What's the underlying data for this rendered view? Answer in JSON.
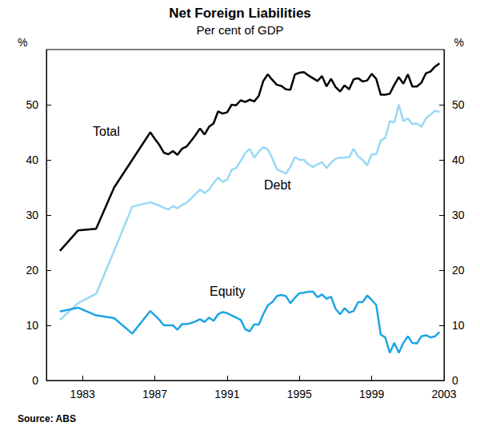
{
  "chart_data": {
    "type": "line",
    "title": "Net Foreign Liabilities",
    "subtitle": "Per cent of GDP",
    "ylabel": "%",
    "source": "Source: ABS",
    "xlim": [
      1981,
      2003
    ],
    "xticks": [
      1983,
      1987,
      1991,
      1995,
      1999,
      2003
    ],
    "ylim": [
      0,
      60
    ],
    "yticks": [
      0,
      10,
      20,
      30,
      40,
      50
    ],
    "grid": false,
    "x": [
      1981.75,
      1982.75,
      1983.75,
      1984.75,
      1985.75,
      1986.75,
      1987,
      1987.25,
      1987.5,
      1987.75,
      1988,
      1988.25,
      1988.5,
      1988.75,
      1989,
      1989.25,
      1989.5,
      1989.75,
      1990,
      1990.25,
      1990.5,
      1990.75,
      1991,
      1991.25,
      1991.5,
      1991.75,
      1992,
      1992.25,
      1992.5,
      1992.75,
      1993,
      1993.25,
      1993.5,
      1993.75,
      1994,
      1994.25,
      1994.5,
      1994.75,
      1995,
      1995.25,
      1995.5,
      1995.75,
      1996,
      1996.25,
      1996.5,
      1996.75,
      1997,
      1997.25,
      1997.5,
      1997.75,
      1998,
      1998.25,
      1998.5,
      1998.75,
      1999,
      1999.25,
      1999.5,
      1999.75,
      2000,
      2000.25,
      2000.5,
      2000.75,
      2001,
      2001.25,
      2001.5,
      2001.75,
      2002,
      2002.25,
      2002.5,
      2002.75
    ],
    "series": [
      {
        "name": "Total",
        "color": "#000000",
        "values": [
          23.5,
          27.2,
          27.5,
          35,
          40,
          45,
          43.8,
          42.7,
          41.3,
          41,
          41.6,
          40.9,
          42,
          42.4,
          43.4,
          44.5,
          45.7,
          44.6,
          46,
          46.6,
          48.8,
          48.4,
          48.6,
          50,
          49.9,
          50.8,
          50.5,
          50.9,
          50.6,
          51.6,
          54.3,
          55.5,
          54.5,
          53.6,
          53.4,
          52.8,
          52.7,
          55.5,
          55.8,
          55.9,
          55.3,
          54.8,
          54.3,
          55.2,
          53.3,
          54.7,
          53.2,
          52.4,
          53.5,
          52.8,
          54.6,
          54.8,
          54.2,
          54.4,
          55.6,
          54.7,
          51.8,
          51.8,
          52,
          53.6,
          55,
          53.8,
          55.5,
          53.3,
          53.3,
          54,
          55.7,
          56,
          56.9,
          57.5
        ]
      },
      {
        "name": "Debt",
        "color": "#99d8f5",
        "values": [
          11,
          14,
          15.7,
          23.5,
          31.5,
          32.3,
          32,
          31.7,
          31.3,
          31,
          31.6,
          31.2,
          31.8,
          32.2,
          33,
          33.8,
          34.6,
          34,
          34.6,
          35.8,
          36.8,
          36,
          36.4,
          38.2,
          38.5,
          39.8,
          41.2,
          42,
          40.4,
          41.5,
          42.3,
          41.9,
          40.3,
          38.3,
          37.9,
          37.5,
          38.7,
          40.5,
          40,
          40,
          39.2,
          38.7,
          39.2,
          39.6,
          38.5,
          39.5,
          40.2,
          40.4,
          40.4,
          40.5,
          42,
          40.6,
          40,
          39,
          41,
          41,
          43.5,
          44,
          47,
          46.8,
          50,
          47,
          47.5,
          46.5,
          46.6,
          46,
          47.5,
          48.2,
          48.9,
          48.7
        ]
      },
      {
        "name": "Equity",
        "color": "#1ea5e3",
        "values": [
          12.5,
          13.2,
          11.8,
          11.3,
          8.5,
          12.6,
          11.8,
          11,
          10,
          10,
          10,
          9.2,
          10.2,
          10.2,
          10.4,
          10.7,
          11.1,
          10.6,
          11.4,
          10.8,
          12,
          12.4,
          12.2,
          11.8,
          11.4,
          11,
          9.3,
          8.9,
          10.2,
          10.1,
          12,
          13.6,
          14.2,
          15.3,
          15.5,
          15.3,
          14,
          15,
          15.8,
          15.9,
          16.1,
          16.1,
          15.1,
          15.6,
          14.8,
          15.2,
          13,
          12,
          13.1,
          12.3,
          12.6,
          14.2,
          14.2,
          15.4,
          14.6,
          13.7,
          8.3,
          7.8,
          5,
          6.8,
          5,
          6.8,
          8,
          6.8,
          6.7,
          8,
          8.2,
          7.8,
          8,
          8.8
        ]
      }
    ]
  }
}
